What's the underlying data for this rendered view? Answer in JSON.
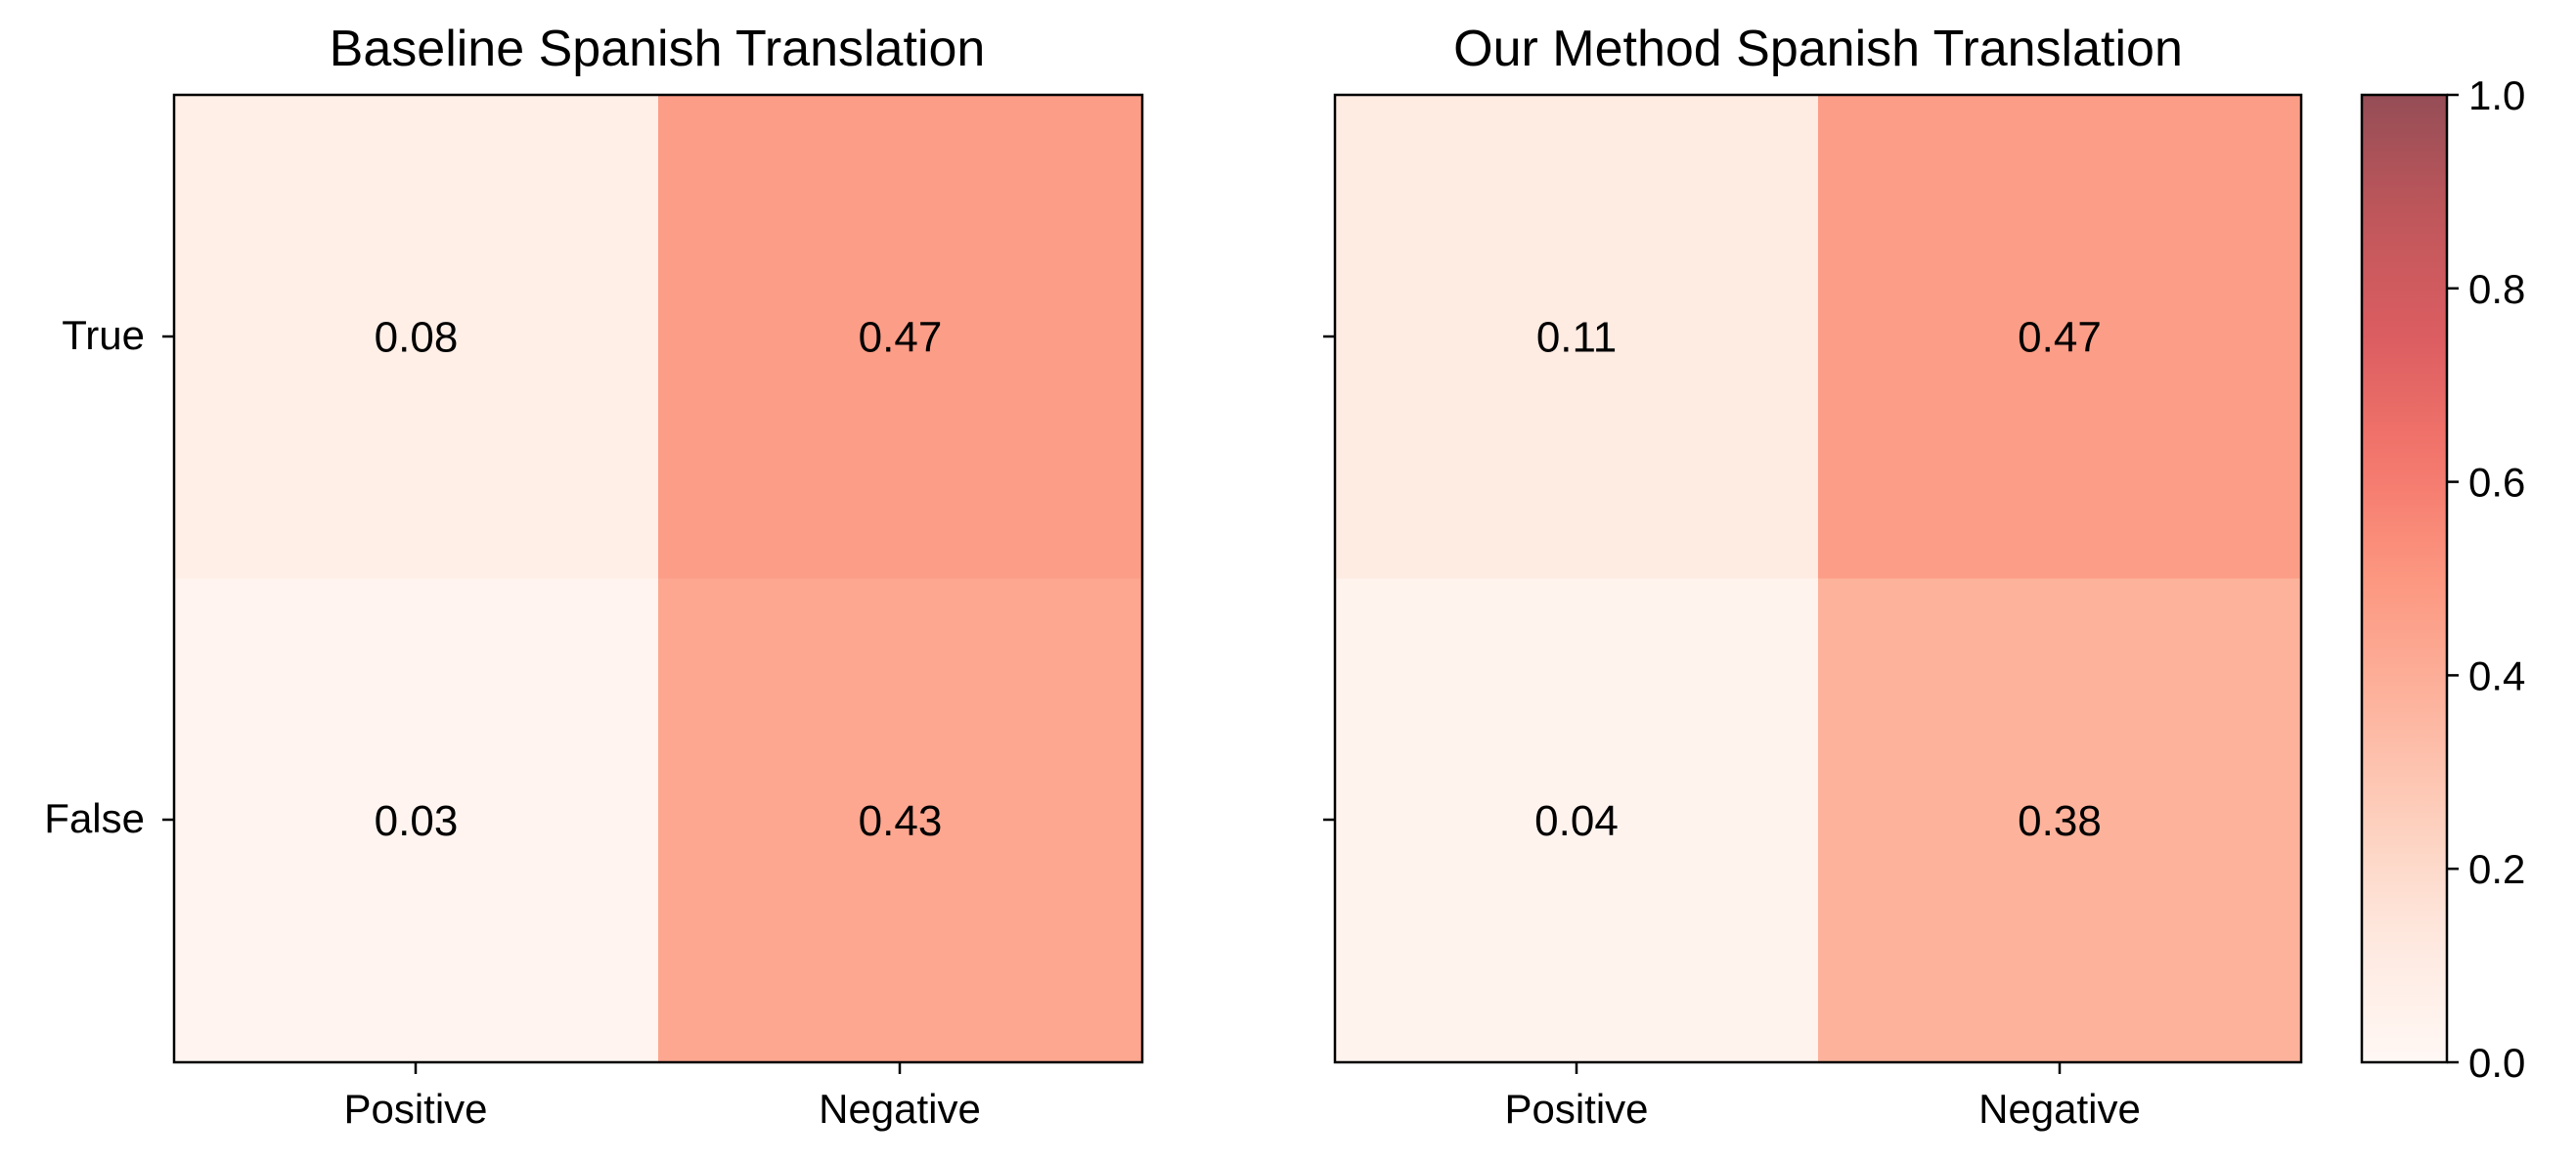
{
  "chart_data": [
    {
      "type": "heatmap",
      "title": "Baseline Spanish Translation",
      "rows": [
        "True",
        "False"
      ],
      "columns": [
        "Positive",
        "Negative"
      ],
      "values": [
        [
          0.08,
          0.47
        ],
        [
          0.03,
          0.43
        ]
      ],
      "value_labels": [
        [
          "0.08",
          "0.47"
        ],
        [
          "0.03",
          "0.43"
        ]
      ],
      "show_row_labels": true
    },
    {
      "type": "heatmap",
      "title": "Our Method Spanish Translation",
      "rows": [
        "True",
        "False"
      ],
      "columns": [
        "Positive",
        "Negative"
      ],
      "values": [
        [
          0.11,
          0.47
        ],
        [
          0.04,
          0.38
        ]
      ],
      "value_labels": [
        [
          "0.11",
          "0.47"
        ],
        [
          "0.04",
          "0.38"
        ]
      ],
      "show_row_labels": false
    }
  ],
  "colorbar": {
    "range": [
      0.0,
      1.0
    ],
    "ticks": [
      0.0,
      0.2,
      0.4,
      0.6,
      0.8,
      1.0
    ],
    "tick_labels": [
      "0.0",
      "0.2",
      "0.4",
      "0.6",
      "0.8",
      "1.0"
    ],
    "colormap": "Reds",
    "alpha": 0.7,
    "colormap_stops": [
      "#fff5f0",
      "#fee0d2",
      "#fcbba1",
      "#fc9272",
      "#fb6a4a",
      "#ef3b2c",
      "#cb181d",
      "#a50f15",
      "#67000d"
    ]
  }
}
